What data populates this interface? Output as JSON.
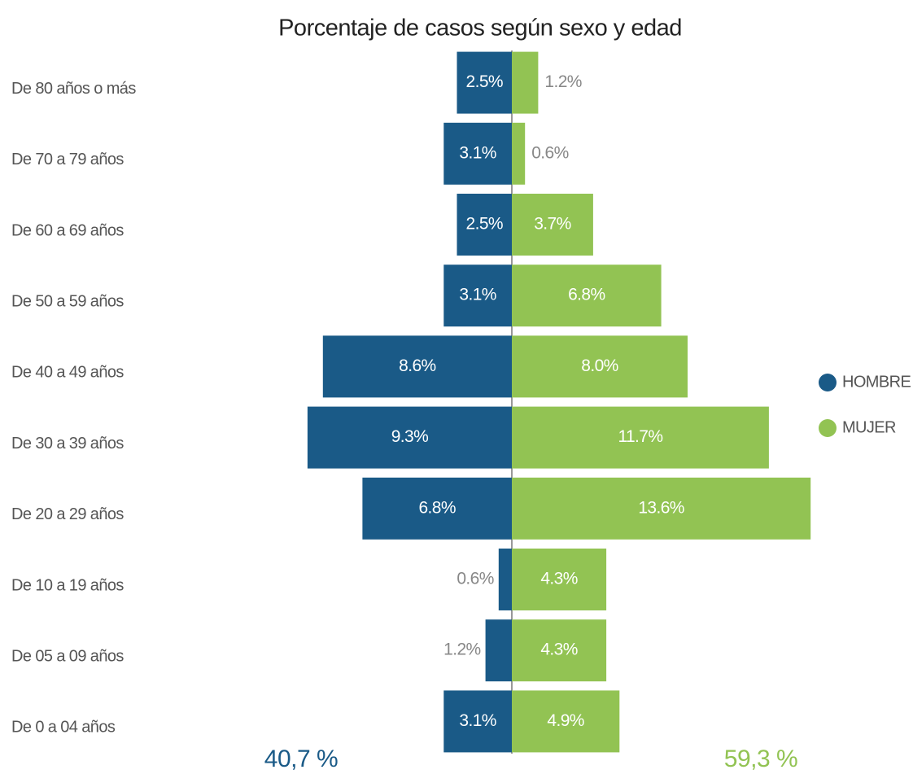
{
  "chart_data": {
    "type": "pyramid",
    "title": "Porcentaje de casos según sexo y edad",
    "categories": [
      "De 80 años o más",
      "De 70 a 79 años",
      "De 60 a 69 años",
      "De 50 a 59 años",
      "De 40 a 49 años",
      "De 30 a 39 años",
      "De 20 a 29 años",
      "De 10 a 19 años",
      "De 05 a 09 años",
      "De 0 a 04 años"
    ],
    "series": [
      {
        "name": "HOMBRE",
        "color": "#1a5a87",
        "values": [
          2.5,
          3.1,
          2.5,
          3.1,
          8.6,
          9.3,
          6.8,
          0.6,
          1.2,
          3.1
        ],
        "value_labels": [
          "2.5%",
          "3.1%",
          "2.5%",
          "3.1%",
          "8.6%",
          "9.3%",
          "6.8%",
          "0.6%",
          "1.2%",
          "3.1%"
        ],
        "total": "40,7 %"
      },
      {
        "name": "MUJER",
        "color": "#92c353",
        "values": [
          1.2,
          0.6,
          3.7,
          6.8,
          8.0,
          11.7,
          13.6,
          4.3,
          4.3,
          4.9
        ],
        "value_labels": [
          "1.2%",
          "0.6%",
          "3.7%",
          "6.8%",
          "8.0%",
          "11.7%",
          "13.6%",
          "4.3%",
          "4.3%",
          "4.9%"
        ],
        "total": "59,3 %"
      }
    ],
    "legend": "right"
  }
}
